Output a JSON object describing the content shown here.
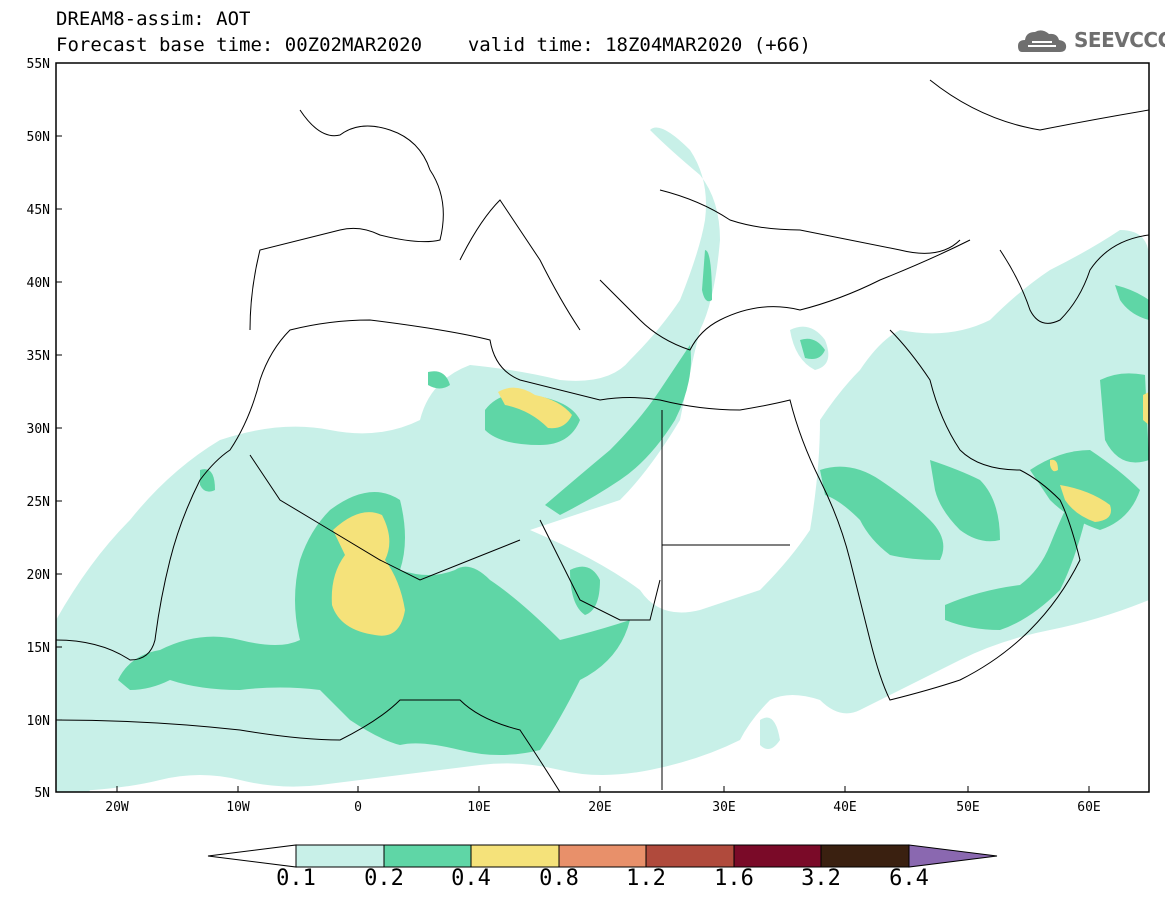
{
  "header": {
    "model_title": "DREAM8-assim: AOT",
    "base_time": "Forecast base time: 00Z02MAR2020",
    "valid_time": "valid time: 18Z04MAR2020 (+66)"
  },
  "logo": {
    "text": "SEEVCCC",
    "icon": "cloud-logo-icon"
  },
  "map": {
    "lon_range": [
      -25,
      65
    ],
    "lat_range": [
      5,
      55
    ],
    "lat_labels": [
      "55N",
      "50N",
      "45N",
      "40N",
      "35N",
      "30N",
      "25N",
      "20N",
      "15N",
      "10N",
      "5N"
    ],
    "lon_labels": [
      "20W",
      "10W",
      "0",
      "10E",
      "20E",
      "30E",
      "40E",
      "50E",
      "60E"
    ]
  },
  "colorbar": {
    "labels": [
      "0.1",
      "0.2",
      "0.4",
      "0.8",
      "1.2",
      "1.6",
      "3.2",
      "6.4"
    ],
    "colors": [
      "#ffffff",
      "#c8f0e8",
      "#5fd6a6",
      "#f5e27a",
      "#e8906a",
      "#b04a3c",
      "#7a0a28",
      "#3a2010",
      "#8a68b0"
    ]
  }
}
